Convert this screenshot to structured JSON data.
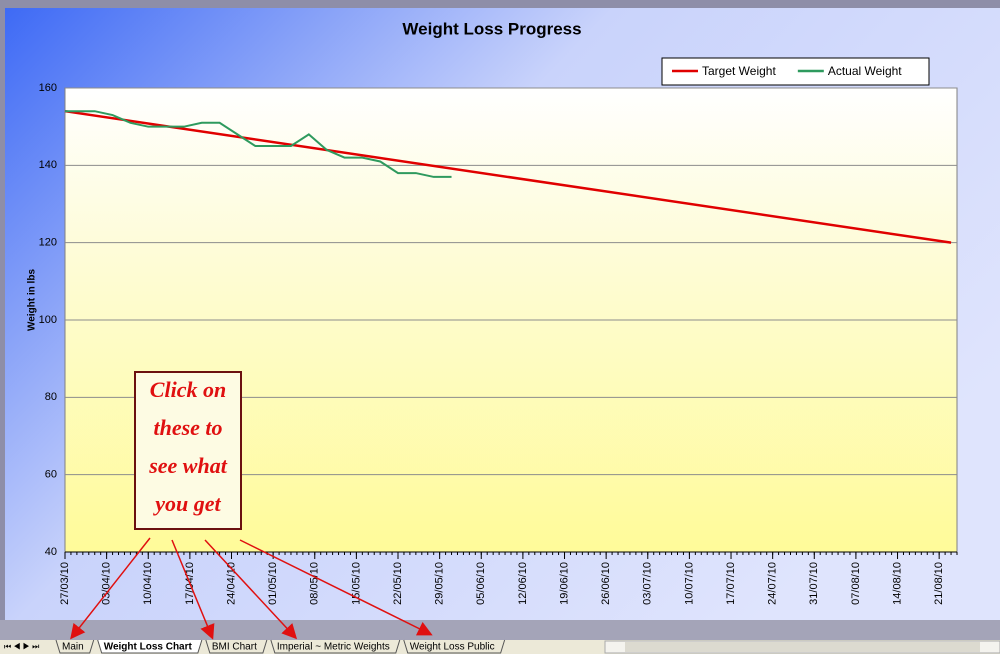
{
  "chart_data": {
    "type": "line",
    "title": "Weight Loss Progress",
    "y_label": "Weight in lbs",
    "xlim": [
      "27/03/10",
      "24/08/10"
    ],
    "xticks": [
      "27/03/10",
      "03/04/10",
      "10/04/10",
      "17/04/10",
      "24/04/10",
      "01/05/10",
      "08/05/10",
      "15/05/10",
      "22/05/10",
      "29/05/10",
      "05/06/10",
      "12/06/10",
      "19/06/10",
      "26/06/10",
      "03/07/10",
      "10/07/10",
      "17/07/10",
      "24/07/10",
      "31/07/10",
      "07/08/10",
      "14/08/10",
      "21/08/10"
    ],
    "ylim": [
      40,
      160
    ],
    "yticks": [
      40,
      60,
      80,
      100,
      120,
      140,
      160
    ],
    "grid": true,
    "legend": "top-right",
    "series": [
      {
        "name": "Target Weight",
        "color": "#e00000",
        "x": [
          "27/03/10",
          "23/08/10"
        ],
        "values": [
          154,
          120
        ]
      },
      {
        "name": "Actual Weight",
        "color": "#2e9a5e",
        "x": [
          "27/03/10",
          "01/04/10",
          "04/04/10",
          "07/04/10",
          "10/04/10",
          "13/04/10",
          "16/04/10",
          "19/04/10",
          "22/04/10",
          "25/04/10",
          "28/04/10",
          "04/05/10",
          "07/05/10",
          "10/05/10",
          "13/05/10",
          "16/05/10",
          "19/05/10",
          "22/05/10",
          "25/05/10",
          "28/05/10",
          "31/05/10"
        ],
        "values": [
          154,
          154,
          153,
          151,
          150,
          150,
          150,
          151,
          151,
          148,
          145,
          145,
          148,
          144,
          142,
          142,
          141,
          138,
          138,
          137,
          137
        ]
      }
    ]
  },
  "callout": [
    "Click on",
    "these to",
    "see what",
    "you get"
  ],
  "sheet_tabs": [
    "Main",
    "Weight Loss Chart",
    "BMI Chart",
    "Imperial ~ Metric Weights",
    "Weight Loss Public"
  ]
}
